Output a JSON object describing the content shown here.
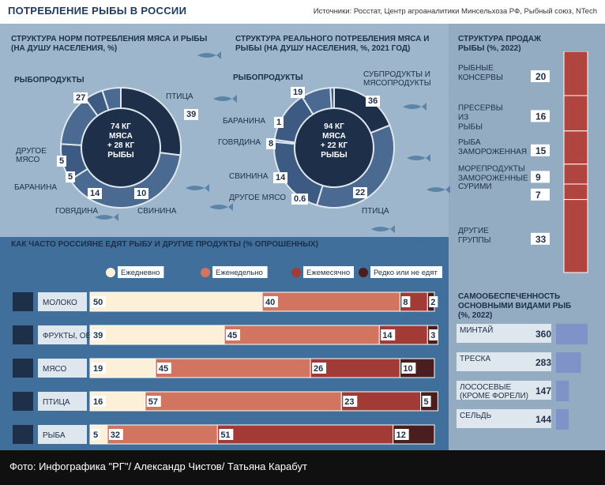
{
  "header": {
    "title": "ПОТРЕБЛЕНИЕ РЫБЫ В РОССИИ",
    "sources": "Источники: Росстат, Центр агроаналитики Минсельхоза РФ, Рыбный союз, NTech"
  },
  "footer": {
    "caption": "Фото: Инфографика \"РГ\"/ Александр Чистов/ Татьяна Карабут"
  },
  "colors": {
    "sea": "#3f6f9a",
    "surface": "#9db6cc",
    "navy": "#1d2f49",
    "daily": "#fcf1d8",
    "weekly": "#d17560",
    "monthly": "#a23a35",
    "rarely": "#4a1e1e",
    "sales": "#b0443e",
    "selfsuff": "#7f93c9"
  },
  "chart_data": [
    {
      "type": "pie",
      "variant": "donut",
      "title": "СТРУКТУРА НОРМ ПОТРЕБЛЕНИЯ МЯСА И РЫБЫ (НА ДУШУ НАСЕЛЕНИЯ, %)",
      "center_text": [
        "74 КГ",
        "МЯСА",
        "+ 28 КГ",
        "РЫБЫ"
      ],
      "slices": [
        {
          "label": "РЫБОПРОДУКТЫ",
          "value": 27
        },
        {
          "label": "ПТИЦА",
          "value": 39
        },
        {
          "label": "СВИНИНА",
          "value": 10
        },
        {
          "label": "ГОВЯДИНА",
          "value": 14
        },
        {
          "label": "БАРАНИНА",
          "value": 5
        },
        {
          "label": "ДРУГОЕ МЯСО",
          "value": 5
        }
      ]
    },
    {
      "type": "pie",
      "variant": "donut",
      "title": "СТРУКТУРА РЕАЛЬНОГО ПОТРЕБЛЕНИЯ МЯСА И РЫБЫ (НА ДУШУ НАСЕЛЕНИЯ, %, 2021 ГОД)",
      "center_text": [
        "94 КГ",
        "МЯСА",
        "+ 22 КГ",
        "РЫБЫ"
      ],
      "slices": [
        {
          "label": "РЫБОПРОДУКТЫ",
          "value": 19
        },
        {
          "label": "СУБПРОДУКТЫ И МЯСОПРОДУКТЫ",
          "value": 36
        },
        {
          "label": "ПТИЦА",
          "value": 22
        },
        {
          "label": "ДРУГОЕ МЯСО",
          "value": 0.6
        },
        {
          "label": "СВИНИНА",
          "value": 14
        },
        {
          "label": "ГОВЯДИНА",
          "value": 8
        },
        {
          "label": "БАРАНИНА",
          "value": 1
        }
      ]
    },
    {
      "type": "bar",
      "variant": "stacked-horizontal",
      "title": "КАК ЧАСТО РОССИЯНЕ ЕДЯТ РЫБУ И ДРУГИЕ ПРОДУКТЫ (% ОПРОШЕННЫХ)",
      "categories": [
        "МОЛОКО",
        "ФРУКТЫ, ОВОЩИ",
        "МЯСО",
        "ПТИЦА",
        "РЫБА"
      ],
      "series": [
        {
          "name": "Ежедневно",
          "values": [
            50,
            39,
            19,
            16,
            5
          ]
        },
        {
          "name": "Еженедельно",
          "values": [
            40,
            45,
            45,
            57,
            32
          ]
        },
        {
          "name": "Ежемесячно",
          "values": [
            8,
            14,
            26,
            23,
            51
          ]
        },
        {
          "name": "Редко или не едят",
          "values": [
            2,
            3,
            10,
            5,
            12
          ]
        }
      ],
      "legend": "top"
    },
    {
      "type": "bar",
      "variant": "vertical-stack",
      "title": "СТРУКТУРА ПРОДАЖ РЫБЫ (%, 2022)",
      "categories": [
        "РЫБНЫЕ КОНСЕРВЫ",
        "ПРЕСЕРВЫ ИЗ РЫБЫ",
        "РЫБА ЗАМОРОЖЕННАЯ",
        "МОРЕПРОДУКТЫ ЗАМОРОЖЕННЫЕ",
        "СУРИМИ",
        "ДРУГИЕ ГРУППЫ"
      ],
      "values": [
        20,
        16,
        15,
        9,
        7,
        33
      ]
    },
    {
      "type": "bar",
      "title": "САМООБЕСПЕЧЕННОСТЬ ОСНОВНЫМИ ВИДАМИ РЫБ (%, 2022)",
      "categories": [
        "МИНТАЙ",
        "ТРЕСКА",
        "ЛОСОСЕВЫЕ (КРОМЕ ФОРЕЛИ)",
        "СЕЛЬДЬ"
      ],
      "values": [
        360,
        283,
        147,
        144
      ]
    }
  ]
}
